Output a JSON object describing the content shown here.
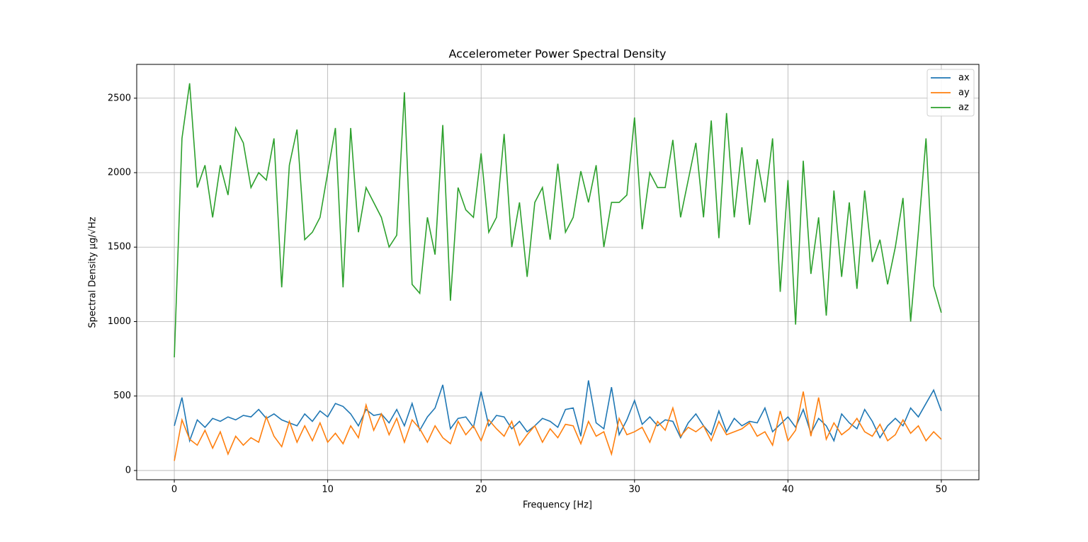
{
  "chart_data": {
    "type": "line",
    "title": "Accelerometer Power Spectral Density",
    "x_label": "Frequency [Hz]",
    "y_label": "Spectral Density  μg/√Hz",
    "x": [
      0,
      0.5,
      1,
      1.5,
      2,
      2.5,
      3,
      3.5,
      4,
      4.5,
      5,
      5.5,
      6,
      6.5,
      7,
      7.5,
      8,
      8.5,
      9,
      9.5,
      10,
      10.5,
      11,
      11.5,
      12,
      12.5,
      13,
      13.5,
      14,
      14.5,
      15,
      15.5,
      16,
      16.5,
      17,
      17.5,
      18,
      18.5,
      19,
      19.5,
      20,
      20.5,
      21,
      21.5,
      22,
      22.5,
      23,
      23.5,
      24,
      24.5,
      25,
      25.5,
      26,
      26.5,
      27,
      27.5,
      28,
      28.5,
      29,
      29.5,
      30,
      30.5,
      31,
      31.5,
      32,
      32.5,
      33,
      33.5,
      34,
      34.5,
      35,
      35.5,
      36,
      36.5,
      37,
      37.5,
      38,
      38.5,
      39,
      39.5,
      40,
      40.5,
      41,
      41.5,
      42,
      42.5,
      43,
      43.5,
      44,
      44.5,
      45,
      45.5,
      46,
      46.5,
      47,
      47.5,
      48,
      48.5,
      49,
      49.5,
      50
    ],
    "series": [
      {
        "name": "ax",
        "color": "#1f77b4",
        "values": [
          300,
          490,
          200,
          340,
          290,
          350,
          330,
          360,
          340,
          370,
          360,
          410,
          350,
          380,
          340,
          320,
          300,
          380,
          330,
          400,
          360,
          450,
          430,
          380,
          300,
          410,
          370,
          380,
          320,
          410,
          300,
          450,
          270,
          360,
          420,
          575,
          280,
          350,
          360,
          290,
          530,
          300,
          370,
          360,
          280,
          330,
          260,
          300,
          350,
          330,
          290,
          410,
          420,
          230,
          605,
          320,
          280,
          560,
          240,
          340,
          470,
          310,
          360,
          300,
          340,
          330,
          220,
          320,
          380,
          300,
          240,
          400,
          260,
          350,
          300,
          330,
          320,
          420,
          260,
          310,
          360,
          290,
          410,
          250,
          350,
          300,
          200,
          380,
          320,
          280,
          410,
          330,
          220,
          300,
          350,
          300,
          420,
          360,
          450,
          540,
          400
        ]
      },
      {
        "name": "ay",
        "color": "#ff7f0e",
        "values": [
          65,
          340,
          210,
          170,
          270,
          150,
          260,
          110,
          230,
          170,
          220,
          190,
          360,
          230,
          160,
          330,
          190,
          300,
          200,
          320,
          190,
          250,
          180,
          300,
          220,
          440,
          270,
          380,
          240,
          350,
          190,
          340,
          280,
          190,
          300,
          220,
          180,
          330,
          240,
          300,
          200,
          340,
          280,
          230,
          330,
          170,
          240,
          300,
          190,
          280,
          220,
          310,
          300,
          180,
          330,
          230,
          260,
          110,
          350,
          240,
          260,
          290,
          190,
          330,
          270,
          420,
          230,
          290,
          260,
          300,
          200,
          330,
          240,
          260,
          280,
          320,
          230,
          260,
          170,
          400,
          200,
          270,
          530,
          230,
          490,
          210,
          320,
          240,
          280,
          350,
          260,
          230,
          310,
          200,
          240,
          340,
          250,
          300,
          200,
          260,
          210
        ]
      },
      {
        "name": "az",
        "color": "#2ca02c",
        "values": [
          760,
          2230,
          2600,
          1900,
          2050,
          1700,
          2050,
          1850,
          2300,
          2200,
          1900,
          2000,
          1950,
          2230,
          1230,
          2050,
          2290,
          1550,
          1600,
          1700,
          2000,
          2300,
          1230,
          2300,
          1600,
          1900,
          1800,
          1700,
          1500,
          1580,
          2540,
          1250,
          1190,
          1700,
          1450,
          2320,
          1140,
          1900,
          1750,
          1700,
          2130,
          1600,
          1700,
          2260,
          1500,
          1800,
          1300,
          1800,
          1900,
          1550,
          2060,
          1600,
          1700,
          2010,
          1800,
          2050,
          1500,
          1800,
          1800,
          1850,
          2370,
          1620,
          2000,
          1900,
          1900,
          2220,
          1700,
          1950,
          2200,
          1700,
          2350,
          1560,
          2400,
          1700,
          2170,
          1650,
          2090,
          1800,
          2230,
          1200,
          1950,
          980,
          2080,
          1320,
          1700,
          1040,
          1880,
          1300,
          1800,
          1220,
          1880,
          1400,
          1550,
          1250,
          1500,
          1830,
          1000,
          1600,
          2230,
          1240,
          1060
        ]
      }
    ],
    "xlim": [
      -2.45,
      52.45
    ],
    "ylim": [
      -62,
      2727
    ],
    "xticks": [
      0,
      10,
      20,
      30,
      40,
      50
    ],
    "yticks": [
      0,
      500,
      1000,
      1500,
      2000,
      2500
    ],
    "grid": true,
    "legend": "upper right"
  }
}
